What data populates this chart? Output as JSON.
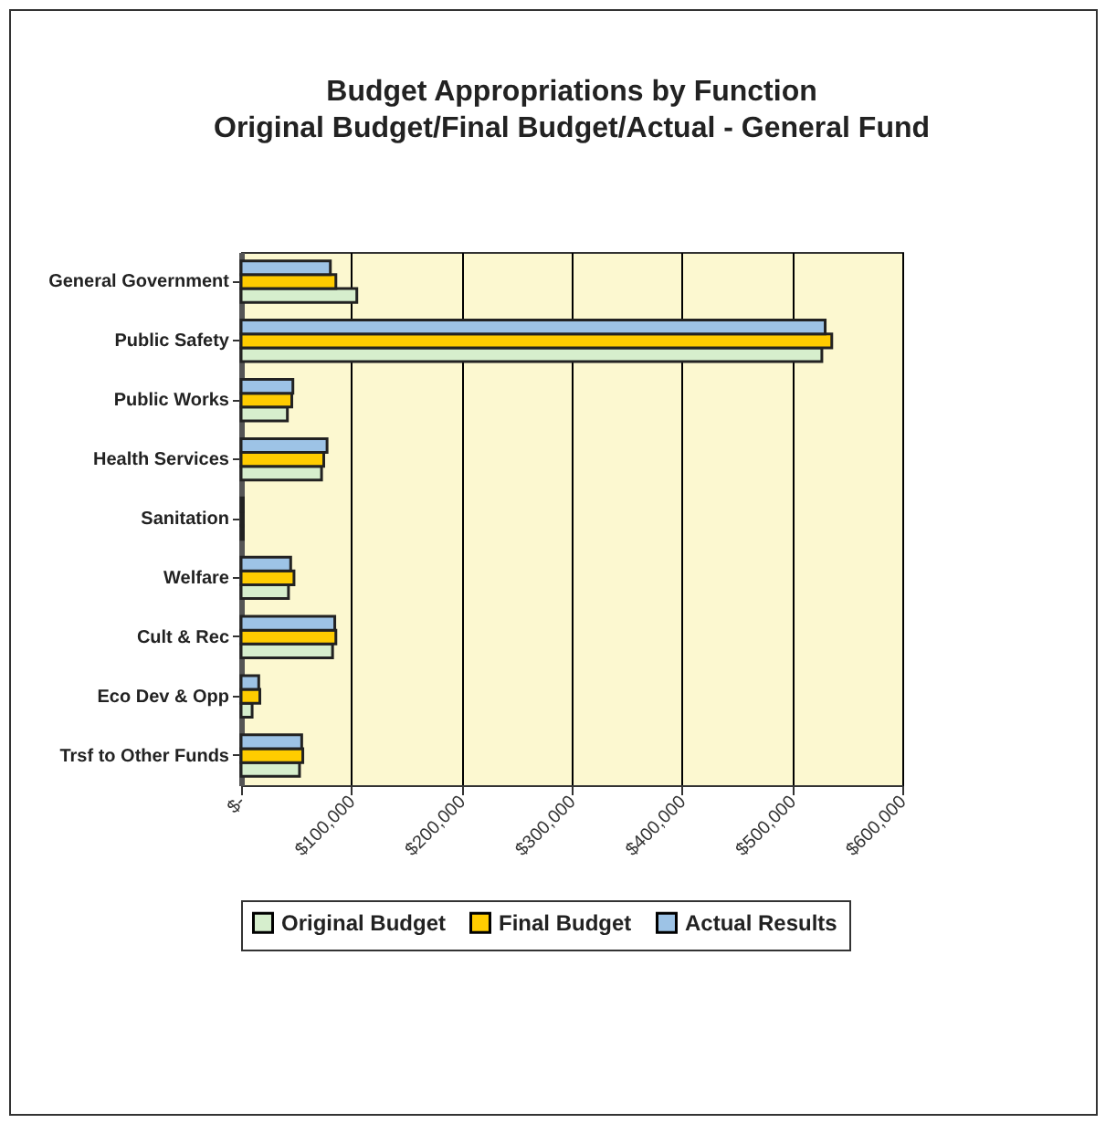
{
  "chart_data": {
    "type": "bar",
    "orientation": "horizontal",
    "title": "Budget Appropriations by Function",
    "subtitle": "Original Budget/Final Budget/Actual - General Fund",
    "categories": [
      "General Government",
      "Public Safety",
      "Public Works",
      "Health Services",
      "Sanitation",
      "Welfare",
      "Cult & Rec",
      "Eco Dev & Opp",
      "Trsf to Other Funds"
    ],
    "series": [
      {
        "name": "Original Budget",
        "color": "#d6eecd",
        "values": [
          105000,
          527000,
          42000,
          73000,
          2000,
          43000,
          83000,
          10000,
          53000
        ]
      },
      {
        "name": "Final Budget",
        "color": "#ffcc00",
        "values": [
          86000,
          536000,
          46000,
          75000,
          2000,
          48000,
          86000,
          17000,
          56000
        ]
      },
      {
        "name": "Actual Results",
        "color": "#9dc3e6",
        "values": [
          81000,
          530000,
          47000,
          78000,
          2000,
          45000,
          85000,
          16000,
          55000
        ]
      }
    ],
    "xlim": [
      0,
      600000
    ],
    "xticks": [
      {
        "value": 0,
        "label": "$-"
      },
      {
        "value": 100000,
        "label": "$100,000"
      },
      {
        "value": 200000,
        "label": "$200,000"
      },
      {
        "value": 300000,
        "label": "$300,000"
      },
      {
        "value": 400000,
        "label": "$400,000"
      },
      {
        "value": 500000,
        "label": "$500,000"
      },
      {
        "value": 600000,
        "label": "$600,000"
      }
    ],
    "grid": "x",
    "legend": "bottom"
  }
}
